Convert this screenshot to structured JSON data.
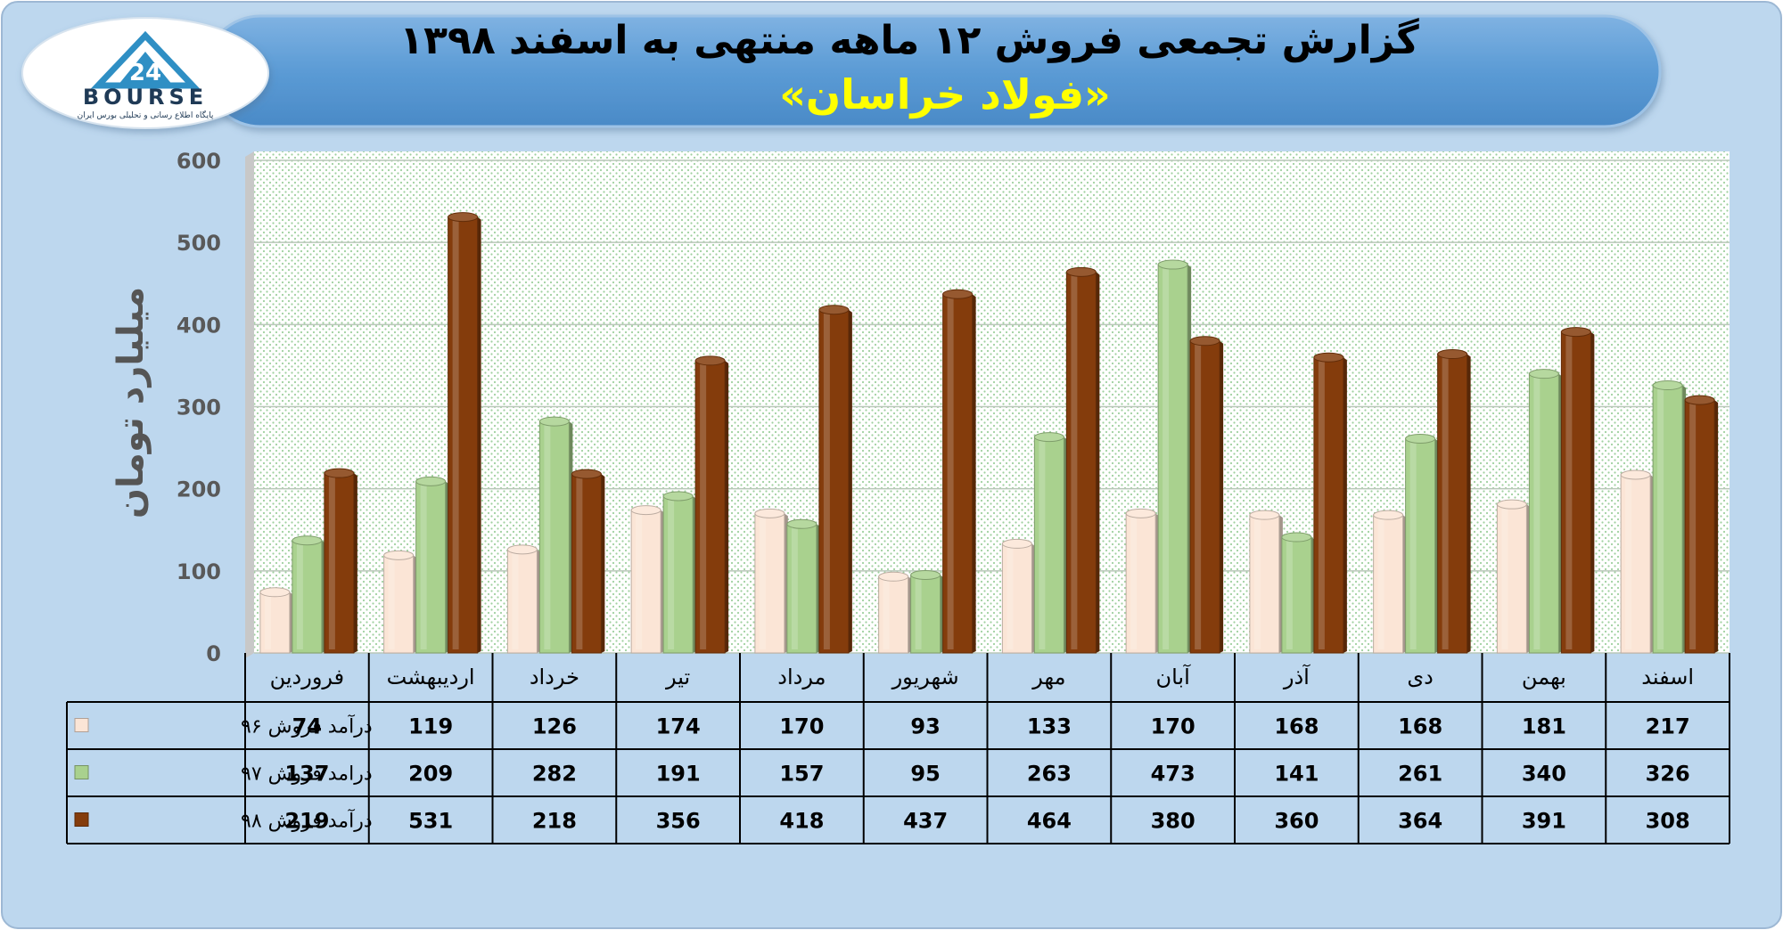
{
  "header": {
    "title": "گزارش تجمعی فروش ۱۲ ماهه منتهی به اسفند ۱۳۹۸",
    "subtitle": "«فولاد خراسان»"
  },
  "logo": {
    "wordmark": "BOURSE",
    "tagline": "پایگاه اطلاع رسانی و تحلیلی بورس ایران",
    "icon": "bourse-24-logo"
  },
  "colors": {
    "page_bg": "#BDD7EE",
    "banner": "#5B9BD5",
    "title_text": "#000000",
    "subtitle_text": "#FFFF00",
    "series_96": "#FBE5D6",
    "series_97": "#A9D18E",
    "series_98": "#843C0C"
  },
  "chart_data": {
    "type": "bar",
    "title": "گزارش تجمعی فروش ۱۲ ماهه منتهی به اسفند ۱۳۹۸",
    "subtitle": "«فولاد خراسان»",
    "ylabel": "میلیارد تومان",
    "xlabel": "",
    "ylim": [
      0,
      600
    ],
    "yticks": [
      0,
      100,
      200,
      300,
      400,
      500,
      600
    ],
    "grid": true,
    "legend": "data-table-left",
    "categories": [
      "فروردین",
      "اردیبهشت",
      "خرداد",
      "تیر",
      "مرداد",
      "شهریور",
      "مهر",
      "آبان",
      "آذر",
      "دی",
      "بهمن",
      "اسفند"
    ],
    "series": [
      {
        "name": "درآمد فروش ۹۶",
        "color": "#FBE5D6",
        "values": [
          74,
          119,
          126,
          174,
          170,
          93,
          133,
          170,
          168,
          168,
          181,
          217
        ]
      },
      {
        "name": "درامد فروش ۹۷",
        "color": "#A9D18E",
        "values": [
          137,
          209,
          282,
          191,
          157,
          95,
          263,
          473,
          141,
          261,
          340,
          326
        ]
      },
      {
        "name": "درآمد فروش ۹۸",
        "color": "#843C0C",
        "values": [
          219,
          531,
          218,
          356,
          418,
          437,
          464,
          380,
          360,
          364,
          391,
          308
        ]
      }
    ]
  }
}
